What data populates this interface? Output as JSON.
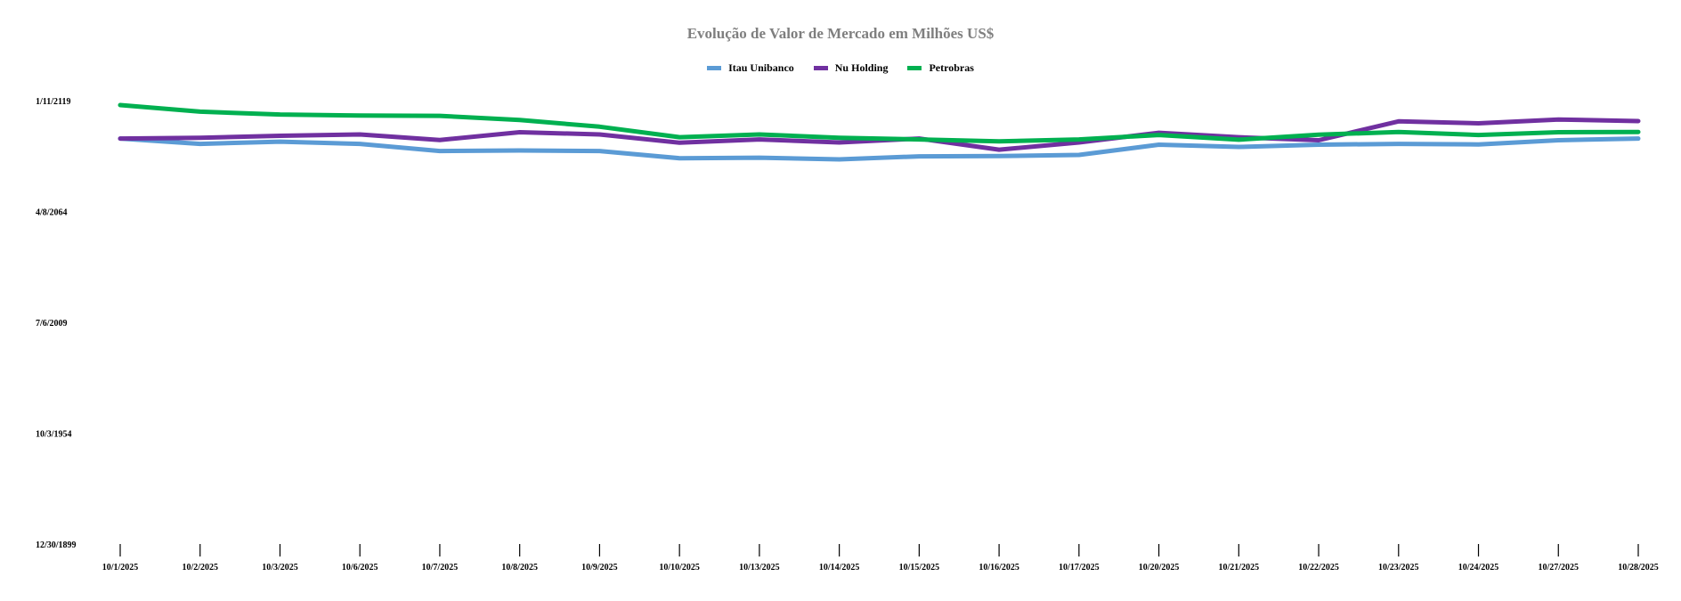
{
  "chart_data": {
    "type": "line",
    "title": "Evolução de Valor de Mercado em Milhões US$",
    "xlabel": "",
    "ylabel": "",
    "legend_position": "top-center",
    "grid": false,
    "x": [
      "10/1/2025",
      "10/2/2025",
      "10/3/2025",
      "10/6/2025",
      "10/7/2025",
      "10/8/2025",
      "10/9/2025",
      "10/10/2025",
      "10/13/2025",
      "10/14/2025",
      "10/15/2025",
      "10/16/2025",
      "10/17/2025",
      "10/20/2025",
      "10/21/2025",
      "10/22/2025",
      "10/23/2025",
      "10/24/2025",
      "10/27/2025",
      "10/28/2025"
    ],
    "y_tick_labels": [
      "12/30/1899",
      "10/3/1954",
      "7/6/2009",
      "4/8/2064",
      "1/11/2119"
    ],
    "y_tick_values": [
      0,
      20000,
      40000,
      60000,
      80000
    ],
    "ylim": [
      0,
      80000
    ],
    "series": [
      {
        "name": "Itau Unibanco",
        "color": "#5b9bd5",
        "values": [
          73150,
          72200,
          72600,
          72200,
          70900,
          71000,
          70900,
          69600,
          69700,
          69400,
          69950,
          70000,
          70200,
          72050,
          71650,
          72050,
          72200,
          72100,
          72850,
          73150
        ]
      },
      {
        "name": "Nu Holding",
        "color": "#7030a0",
        "values": [
          73150,
          73300,
          73650,
          73900,
          72900,
          74300,
          73900,
          72400,
          73000,
          72450,
          73150,
          71150,
          72450,
          74200,
          73400,
          72850,
          76250,
          75900,
          76600,
          76300
        ]
      },
      {
        "name": "Petrobras",
        "color": "#00b050",
        "values": [
          79200,
          78000,
          77500,
          77300,
          77250,
          76500,
          75300,
          73400,
          73900,
          73300,
          73000,
          72650,
          73000,
          73800,
          72950,
          73850,
          74350,
          73800,
          74300,
          74350
        ]
      }
    ]
  }
}
